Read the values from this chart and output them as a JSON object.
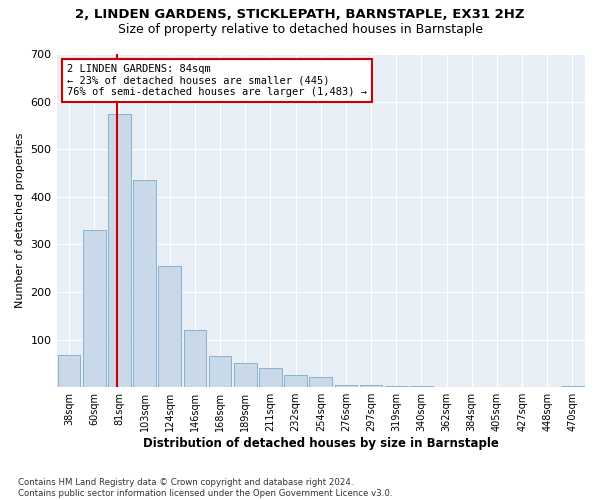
{
  "title1": "2, LINDEN GARDENS, STICKLEPATH, BARNSTAPLE, EX31 2HZ",
  "title2": "Size of property relative to detached houses in Barnstaple",
  "xlabel": "Distribution of detached houses by size in Barnstaple",
  "ylabel": "Number of detached properties",
  "bar_color": "#c9d9ea",
  "bar_edge_color": "#7aaac8",
  "categories": [
    "38sqm",
    "60sqm",
    "81sqm",
    "103sqm",
    "124sqm",
    "146sqm",
    "168sqm",
    "189sqm",
    "211sqm",
    "232sqm",
    "254sqm",
    "276sqm",
    "297sqm",
    "319sqm",
    "340sqm",
    "362sqm",
    "384sqm",
    "405sqm",
    "427sqm",
    "448sqm",
    "470sqm"
  ],
  "values": [
    68,
    330,
    575,
    435,
    255,
    120,
    65,
    50,
    40,
    25,
    22,
    5,
    5,
    3,
    3,
    1,
    1,
    1,
    1,
    1,
    2
  ],
  "vline_color": "#cc0000",
  "annotation_text": "2 LINDEN GARDENS: 84sqm\n← 23% of detached houses are smaller (445)\n76% of semi-detached houses are larger (1,483) →",
  "annotation_box_color": "#ffffff",
  "annotation_box_edge": "#cc0000",
  "ylim": [
    0,
    700
  ],
  "yticks": [
    0,
    100,
    200,
    300,
    400,
    500,
    600,
    700
  ],
  "footnote": "Contains HM Land Registry data © Crown copyright and database right 2024.\nContains public sector information licensed under the Open Government Licence v3.0.",
  "background_color": "#e8eef5",
  "plot_background": "#ffffff"
}
